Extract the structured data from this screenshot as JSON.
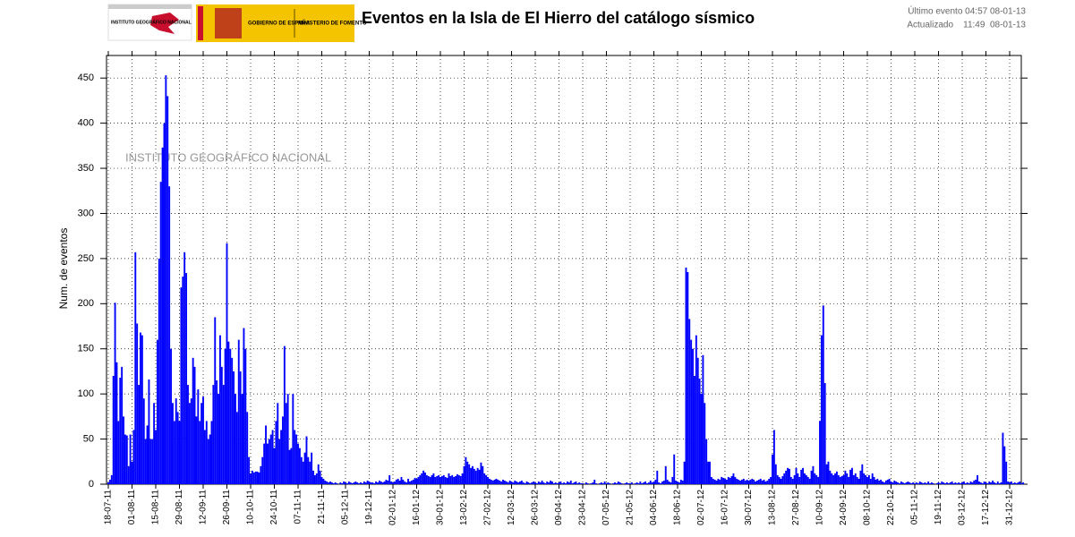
{
  "header": {
    "last_event": "Último evento 04:57 08-01-13",
    "updated": "Actualizado    11:49  08-01-13",
    "logos": [
      "INSTITUTO GEOGRÁFICO NACIONAL",
      "GOBIERNO DE ESPAÑA",
      "MINISTERIO DE FOMENTO"
    ]
  },
  "chart_data": {
    "type": "bar",
    "title": "Eventos en la Isla de El Hierro del catálogo sísmico",
    "ylabel": "Num. de eventos",
    "annotation": "INSTITUTO GEOGRÁFICO NACIONAL",
    "color": "#0000ff",
    "grid": true,
    "ylim": [
      0,
      475
    ],
    "yticks": [
      0,
      50,
      100,
      150,
      200,
      250,
      300,
      350,
      400,
      450
    ],
    "categories": [
      "18-07-11",
      null,
      null,
      null,
      null,
      null,
      null,
      null,
      null,
      null,
      null,
      null,
      null,
      null,
      "01-08-11",
      null,
      null,
      null,
      null,
      null,
      null,
      null,
      null,
      null,
      null,
      null,
      null,
      null,
      "15-08-11",
      null,
      null,
      null,
      null,
      null,
      null,
      null,
      null,
      null,
      null,
      null,
      null,
      null,
      "29-08-11",
      null,
      null,
      null,
      null,
      null,
      null,
      null,
      null,
      null,
      null,
      null,
      null,
      null,
      "12-09-11",
      null,
      null,
      null,
      null,
      null,
      null,
      null,
      null,
      null,
      null,
      null,
      null,
      null,
      "26-09-11",
      null,
      null,
      null,
      null,
      null,
      null,
      null,
      null,
      null,
      null,
      null,
      null,
      null,
      "10-10-11",
      null,
      null,
      null,
      null,
      null,
      null,
      null,
      null,
      null,
      null,
      null,
      null,
      null,
      "24-10-11",
      null,
      null,
      null,
      null,
      null,
      null,
      null,
      null,
      null,
      null,
      null,
      null,
      null,
      "07-11-11",
      null,
      null,
      null,
      null,
      null,
      null,
      null,
      null,
      null,
      null,
      null,
      null,
      null,
      "21-11-11",
      null,
      null,
      null,
      null,
      null,
      null,
      null,
      null,
      null,
      null,
      null,
      null,
      null,
      "05-12-11",
      null,
      null,
      null,
      null,
      null,
      null,
      null,
      null,
      null,
      null,
      null,
      null,
      null,
      "19-12-11",
      null,
      null,
      null,
      null,
      null,
      null,
      null,
      null,
      null,
      null,
      null,
      null,
      null,
      "02-01-12",
      null,
      null,
      null,
      null,
      null,
      null,
      null,
      null,
      null,
      null,
      null,
      null,
      null,
      "16-01-12",
      null,
      null,
      null,
      null,
      null,
      null,
      null,
      null,
      null,
      null,
      null,
      null,
      null,
      "30-01-12",
      null,
      null,
      null,
      null,
      null,
      null,
      null,
      null,
      null,
      null,
      null,
      null,
      null,
      "13-02-12",
      null,
      null,
      null,
      null,
      null,
      null,
      null,
      null,
      null,
      null,
      null,
      null,
      null,
      "27-02-12",
      null,
      null,
      null,
      null,
      null,
      null,
      null,
      null,
      null,
      null,
      null,
      null,
      null,
      "12-03-12",
      null,
      null,
      null,
      null,
      null,
      null,
      null,
      null,
      null,
      null,
      null,
      null,
      null,
      "26-03-12",
      null,
      null,
      null,
      null,
      null,
      null,
      null,
      null,
      null,
      null,
      null,
      null,
      null,
      "09-04-12",
      null,
      null,
      null,
      null,
      null,
      null,
      null,
      null,
      null,
      null,
      null,
      null,
      null,
      "23-04-12",
      null,
      null,
      null,
      null,
      null,
      null,
      null,
      null,
      null,
      null,
      null,
      null,
      null,
      "07-05-12",
      null,
      null,
      null,
      null,
      null,
      null,
      null,
      null,
      null,
      null,
      null,
      null,
      null,
      "21-05-12",
      null,
      null,
      null,
      null,
      null,
      null,
      null,
      null,
      null,
      null,
      null,
      null,
      null,
      "04-06-12",
      null,
      null,
      null,
      null,
      null,
      null,
      null,
      null,
      null,
      null,
      null,
      null,
      null,
      "18-06-12",
      null,
      null,
      null,
      null,
      null,
      null,
      null,
      null,
      null,
      null,
      null,
      null,
      null,
      "02-07-12",
      null,
      null,
      null,
      null,
      null,
      null,
      null,
      null,
      null,
      null,
      null,
      null,
      null,
      "16-07-12",
      null,
      null,
      null,
      null,
      null,
      null,
      null,
      null,
      null,
      null,
      null,
      null,
      null,
      "30-07-12",
      null,
      null,
      null,
      null,
      null,
      null,
      null,
      null,
      null,
      null,
      null,
      null,
      null,
      "13-08-12",
      null,
      null,
      null,
      null,
      null,
      null,
      null,
      null,
      null,
      null,
      null,
      null,
      null,
      "27-08-12",
      null,
      null,
      null,
      null,
      null,
      null,
      null,
      null,
      null,
      null,
      null,
      null,
      null,
      "10-09-12",
      null,
      null,
      null,
      null,
      null,
      null,
      null,
      null,
      null,
      null,
      null,
      null,
      null,
      "24-09-12",
      null,
      null,
      null,
      null,
      null,
      null,
      null,
      null,
      null,
      null,
      null,
      null,
      null,
      "08-10-12",
      null,
      null,
      null,
      null,
      null,
      null,
      null,
      null,
      null,
      null,
      null,
      null,
      null,
      "22-10-12",
      null,
      null,
      null,
      null,
      null,
      null,
      null,
      null,
      null,
      null,
      null,
      null,
      null,
      "05-11-12",
      null,
      null,
      null,
      null,
      null,
      null,
      null,
      null,
      null,
      null,
      null,
      null,
      null,
      "19-11-12",
      null,
      null,
      null,
      null,
      null,
      null,
      null,
      null,
      null,
      null,
      null,
      null,
      null,
      "03-12-12",
      null,
      null,
      null,
      null,
      null,
      null,
      null,
      null,
      null,
      null,
      null,
      null,
      null,
      "17-12-12",
      null,
      null,
      null,
      null,
      null,
      null,
      null,
      null,
      null,
      null,
      null,
      null,
      null,
      "31-12-12",
      null,
      null,
      null,
      null,
      null,
      null,
      null,
      null
    ],
    "values": [
      2,
      5,
      10,
      120,
      201,
      135,
      70,
      118,
      130,
      75,
      55,
      54,
      20,
      55,
      25,
      60,
      257,
      178,
      110,
      168,
      165,
      95,
      50,
      65,
      116,
      50,
      50,
      90,
      60,
      160,
      250,
      335,
      373,
      400,
      453,
      430,
      330,
      150,
      90,
      70,
      95,
      80,
      70,
      218,
      230,
      257,
      234,
      110,
      90,
      95,
      140,
      130,
      75,
      105,
      70,
      90,
      97,
      60,
      70,
      50,
      55,
      70,
      110,
      185,
      115,
      100,
      165,
      130,
      110,
      150,
      267,
      158,
      150,
      140,
      125,
      100,
      80,
      160,
      125,
      100,
      173,
      150,
      80,
      30,
      12,
      15,
      13,
      14,
      14,
      13,
      20,
      30,
      45,
      65,
      45,
      50,
      55,
      60,
      40,
      70,
      90,
      50,
      60,
      75,
      153,
      90,
      100,
      38,
      40,
      100,
      60,
      55,
      45,
      40,
      30,
      25,
      35,
      53,
      30,
      25,
      35,
      15,
      10,
      12,
      22,
      15,
      8,
      6,
      4,
      3,
      2,
      3,
      2,
      1,
      2,
      1,
      0,
      2,
      1,
      3,
      2,
      1,
      3,
      2,
      1,
      2,
      3,
      2,
      1,
      2,
      1,
      3,
      2,
      4,
      3,
      2,
      2,
      1,
      3,
      2,
      4,
      3,
      2,
      3,
      5,
      4,
      10,
      3,
      2,
      3,
      5,
      6,
      4,
      8,
      5,
      3,
      2,
      6,
      3,
      4,
      5,
      7,
      6,
      8,
      10,
      12,
      15,
      13,
      10,
      9,
      8,
      10,
      12,
      8,
      9,
      10,
      8,
      9,
      10,
      8,
      7,
      12,
      9,
      10,
      8,
      9,
      11,
      10,
      9,
      12,
      20,
      30,
      25,
      22,
      18,
      20,
      17,
      15,
      18,
      16,
      24,
      20,
      12,
      10,
      8,
      6,
      5,
      4,
      5,
      6,
      5,
      4,
      3,
      5,
      4,
      3,
      2,
      4,
      3,
      2,
      4,
      3,
      2,
      3,
      4,
      2,
      1,
      3,
      2,
      1,
      2,
      3,
      2,
      1,
      3,
      2,
      4,
      2,
      1,
      3,
      2,
      4,
      3,
      1,
      2,
      1,
      2,
      3,
      1,
      2,
      1,
      3,
      2,
      4,
      1,
      2,
      3,
      1,
      2,
      1,
      1,
      0,
      2,
      1,
      0,
      1,
      2,
      5,
      1,
      0,
      1,
      2,
      1,
      3,
      1,
      2,
      1,
      0,
      1,
      2,
      1,
      3,
      2,
      1,
      0,
      1,
      2,
      1,
      1,
      2,
      0,
      1,
      2,
      1,
      3,
      1,
      2,
      3,
      1,
      2,
      4,
      2,
      3,
      5,
      15,
      2,
      1,
      3,
      4,
      20,
      5,
      3,
      2,
      8,
      33,
      4,
      3,
      2,
      5,
      4,
      25,
      240,
      235,
      183,
      160,
      150,
      120,
      165,
      140,
      117,
      100,
      143,
      90,
      50,
      25,
      25,
      8,
      6,
      5,
      4,
      6,
      5,
      8,
      7,
      6,
      5,
      8,
      7,
      9,
      12,
      8,
      6,
      5,
      4,
      5,
      6,
      4,
      5,
      4,
      5,
      6,
      5,
      3,
      4,
      5,
      6,
      4,
      5,
      3,
      4,
      6,
      8,
      33,
      60,
      22,
      10,
      8,
      6,
      9,
      12,
      15,
      18,
      17,
      8,
      6,
      10,
      18,
      12,
      8,
      16,
      18,
      12,
      10,
      8,
      6,
      15,
      20,
      12,
      10,
      8,
      70,
      165,
      198,
      112,
      22,
      25,
      15,
      12,
      10,
      12,
      14,
      10,
      8,
      9,
      10,
      15,
      12,
      8,
      16,
      18,
      10,
      12,
      8,
      6,
      15,
      22,
      12,
      10,
      8,
      10,
      6,
      12,
      8,
      5,
      6,
      4,
      5,
      3,
      2,
      4,
      5,
      6,
      3,
      2,
      4,
      3,
      2,
      1,
      3,
      2,
      1,
      2,
      3,
      2,
      1,
      2,
      1,
      2,
      1,
      3,
      2,
      1,
      2,
      1,
      3,
      1,
      2,
      1,
      0,
      1,
      2,
      1,
      3,
      2,
      1,
      2,
      1,
      2,
      3,
      1,
      2,
      1,
      2,
      1,
      2,
      3,
      1,
      2,
      1,
      3,
      2,
      4,
      5,
      10,
      3,
      2,
      1,
      3,
      2,
      1,
      3,
      2,
      4,
      2,
      1,
      3,
      1,
      2,
      57,
      42,
      25,
      3,
      2,
      3,
      1,
      2,
      1,
      2,
      3,
      1,
      2
    ]
  }
}
